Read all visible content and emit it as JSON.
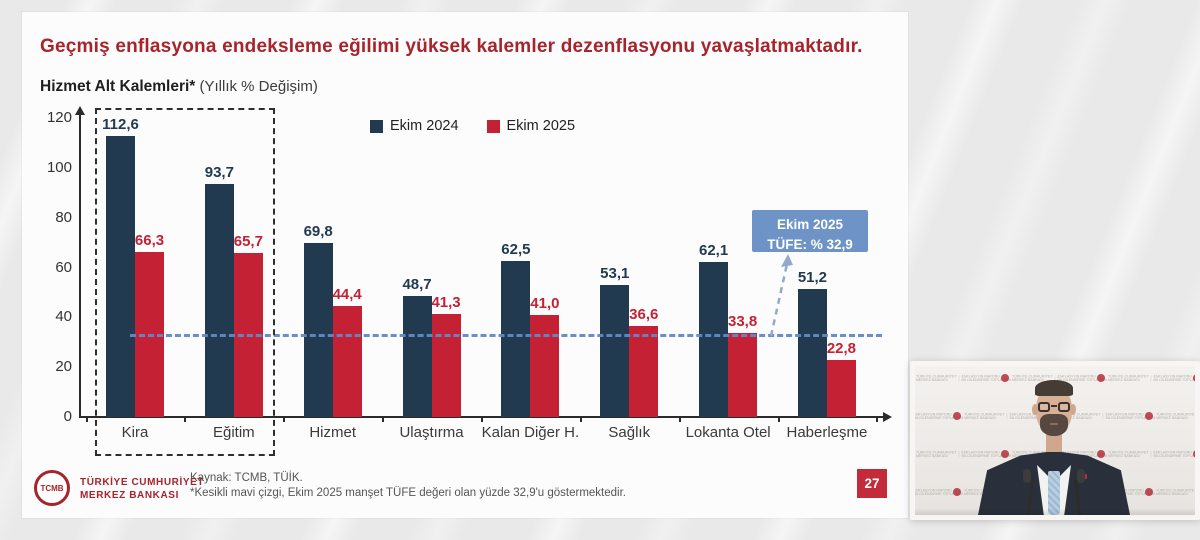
{
  "slide": {
    "title": "Geçmiş enflasyona endeksleme eğilimi yüksek kalemler dezenflasyonu yavaşlatmaktadır.",
    "subtitle_bold": "Hizmet Alt Kalemleri*",
    "subtitle_rest": " (Yıllık % Değişim)",
    "page_number": "27",
    "callout": {
      "line1": "Ekim 2025",
      "line2": "TÜFE: % 32,9"
    },
    "footer": {
      "logo_text": "TCMB",
      "bank_line1": "TÜRKİYE CUMHURİYET",
      "bank_line2": "MERKEZ BANKASI",
      "source": "Kaynak: TCMB, TÜİK.",
      "footnote": "*Kesikli mavi çizgi, Ekim 2025 manşet TÜFE değeri olan yüzde 32,9'u göstermektedir."
    }
  },
  "chart_data": {
    "type": "bar",
    "title": "Hizmet Alt Kalemleri* (Yıllık % Değişim)",
    "categories": [
      "Kira",
      "Eğitim",
      "Hizmet",
      "Ulaştırma",
      "Kalan Diğer H.",
      "Sağlık",
      "Lokanta Otel",
      "Haberleşme"
    ],
    "series": [
      {
        "name": "Ekim 2024",
        "color": "#223a50",
        "values": [
          112.6,
          93.7,
          69.8,
          48.7,
          62.5,
          53.1,
          62.1,
          51.2
        ]
      },
      {
        "name": "Ekim 2025",
        "color": "#c52135",
        "values": [
          66.3,
          65.7,
          44.4,
          41.3,
          41.0,
          36.6,
          33.8,
          22.8
        ]
      }
    ],
    "y_ticks": [
      0,
      20,
      40,
      60,
      80,
      100,
      120
    ],
    "ylim": [
      0,
      120
    ],
    "grid": false,
    "legend_position": "top",
    "reference_line": {
      "value": 32.9,
      "color": "#6289c7",
      "style": "dashed",
      "label": "Ekim 2025 TÜFE: % 32,9"
    },
    "highlight_box_categories": [
      "Kira",
      "Eğitim"
    ]
  },
  "video": {
    "backdrop": {
      "org_line1": "TÜRKİYE CUMHURİYET",
      "org_line2": "MERKEZ BANKASI",
      "event_line1": "ENFLASYON RAPORU",
      "event_line2": "BİLGİLENDİRME TOPLANTISI"
    }
  },
  "colors": {
    "title_red": "#a8242b",
    "bar_navy": "#223a50",
    "bar_red": "#c52135",
    "ref_blue": "#6289c7",
    "callout_blue": "#6e93c6",
    "badge_red": "#c32b3a",
    "logo_red": "#a6252b"
  }
}
